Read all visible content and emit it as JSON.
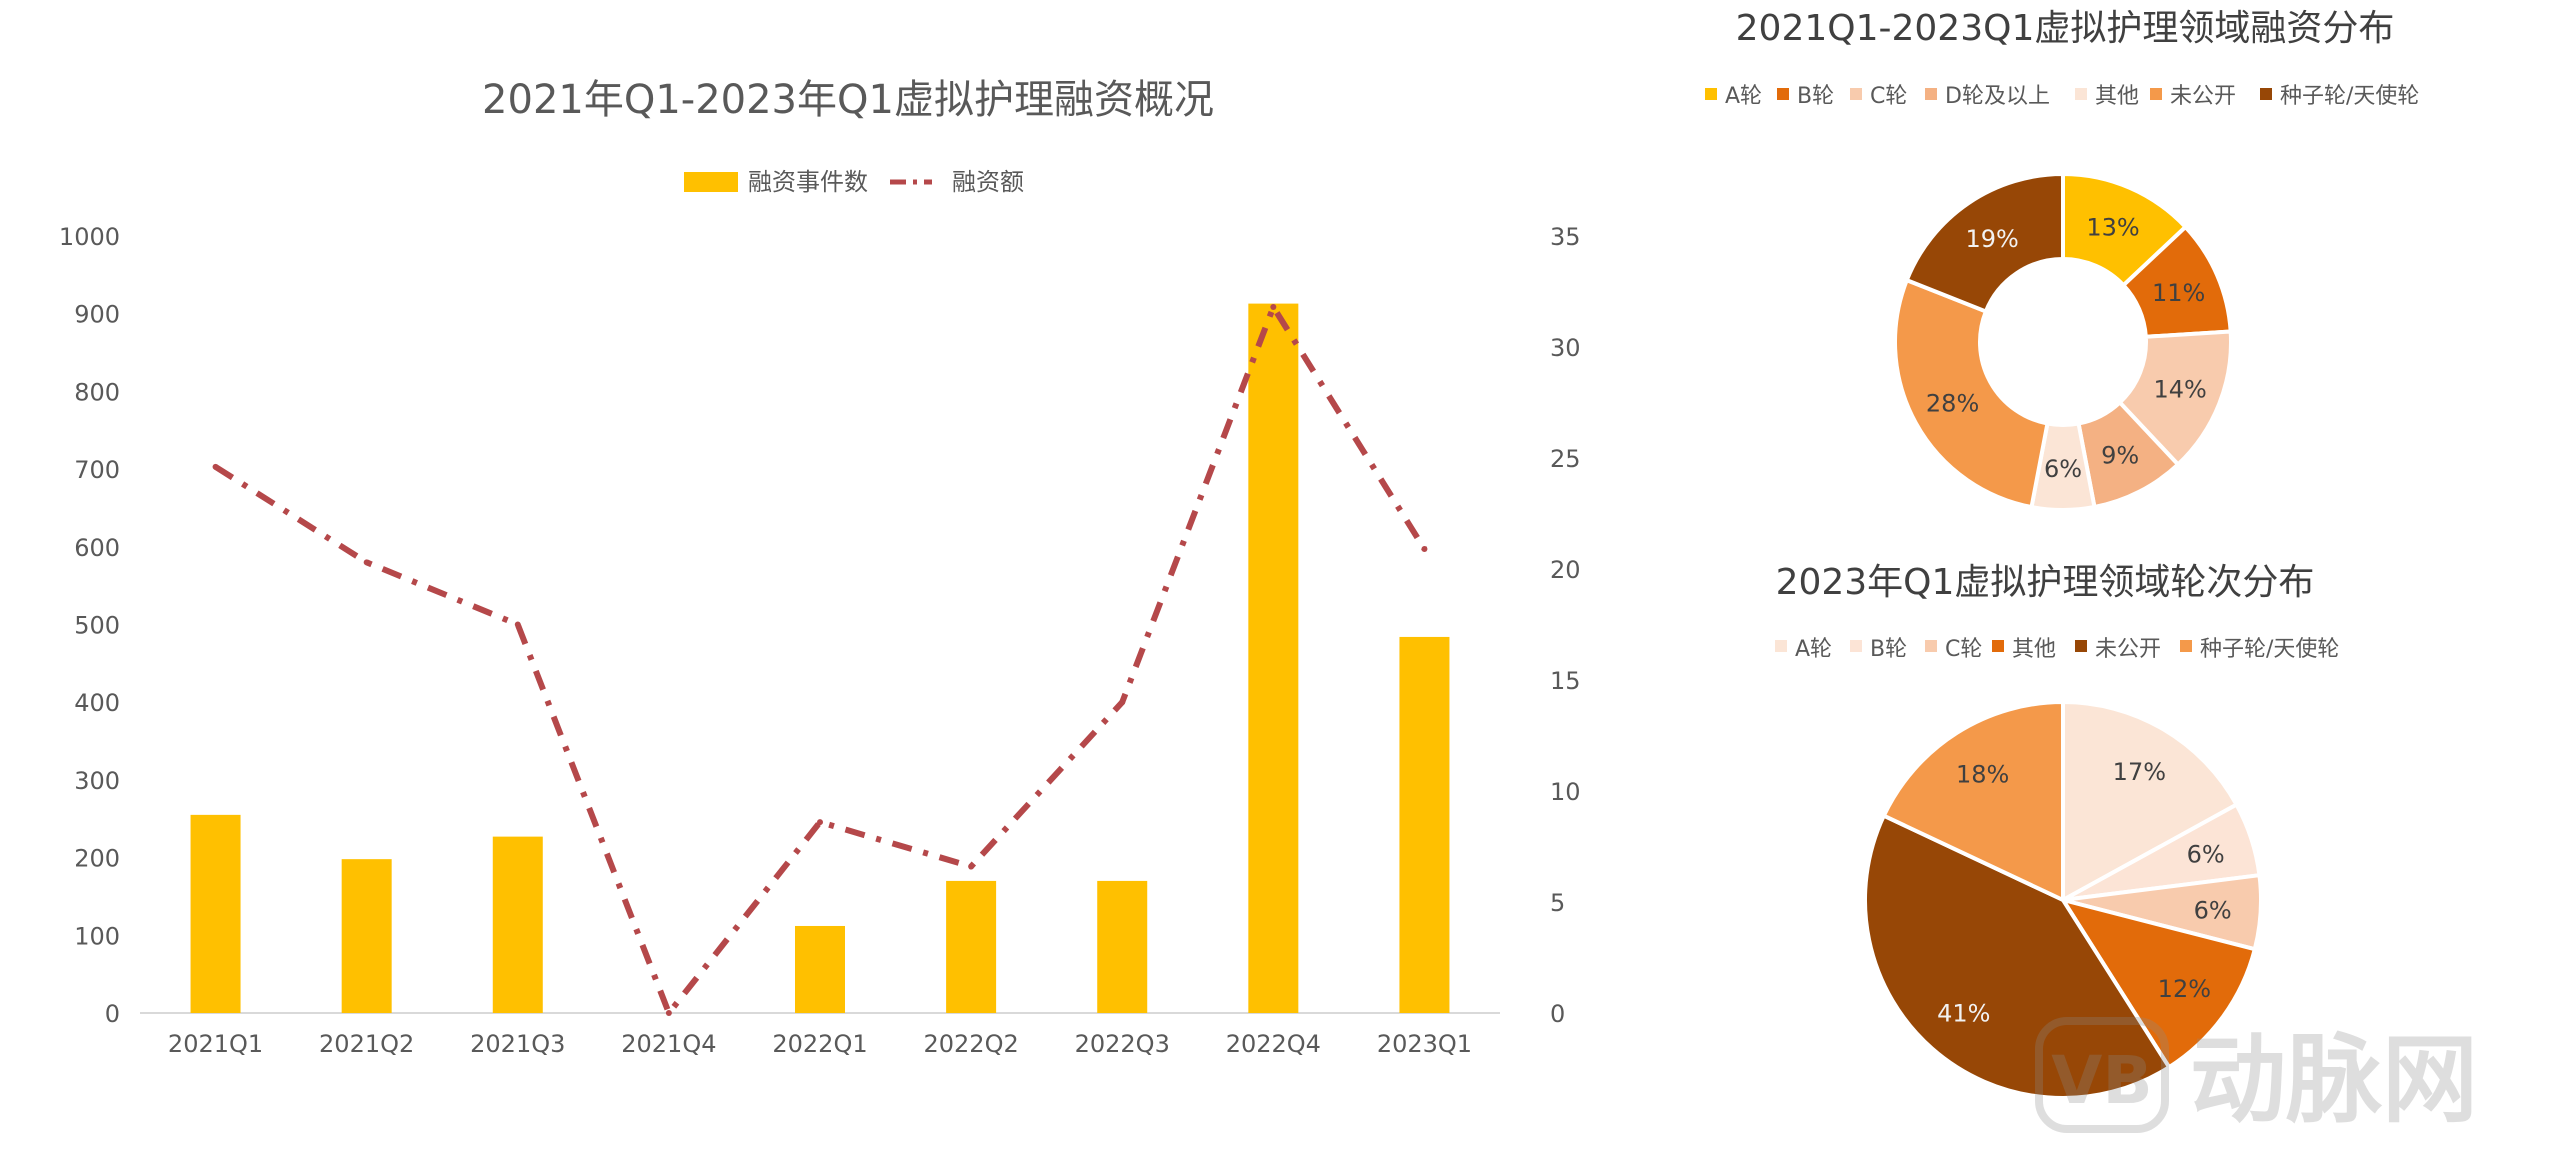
{
  "chart_data": [
    {
      "type": "bar+line",
      "title": "2021年Q1-2023年Q1虚拟护理融资概况",
      "categories": [
        "2021Q1",
        "2021Q2",
        "2021Q3",
        "2021Q4",
        "2022Q1",
        "2022Q2",
        "2022Q3",
        "2022Q4",
        "2023Q1"
      ],
      "series": [
        {
          "name": "融资事件数",
          "type": "bar",
          "axis": "left",
          "color": "#FFC000",
          "values": [
            255,
            198,
            227,
            0,
            112,
            170,
            170,
            913,
            484
          ]
        },
        {
          "name": "融资额",
          "type": "line",
          "style": "dash-dot",
          "axis": "right",
          "color": "#B5484A",
          "values": [
            24.6,
            20.3,
            17.5,
            0,
            8.6,
            6.6,
            14.0,
            31.8,
            20.9
          ]
        }
      ],
      "left_axis": {
        "ylim": [
          0,
          1000
        ],
        "ticks": [
          0,
          100,
          200,
          300,
          400,
          500,
          600,
          700,
          800,
          900,
          1000
        ]
      },
      "right_axis": {
        "ylim": [
          0,
          35
        ],
        "ticks": [
          0,
          5,
          10,
          15,
          20,
          25,
          30,
          35
        ]
      },
      "legend_position": "top-center",
      "grid": false
    },
    {
      "type": "donut",
      "title": "2021Q1-2023Q1虚拟护理领域融资分布",
      "legend": [
        "A轮",
        "B轮",
        "C轮",
        "D轮及以上",
        "其他",
        "未公开",
        "种子轮/天使轮"
      ],
      "slices": [
        {
          "label": "A轮",
          "value": 13,
          "text": "13%",
          "color": "#FFC000"
        },
        {
          "label": "B轮",
          "value": 11,
          "text": "11%",
          "color": "#E26B0A"
        },
        {
          "label": "C轮",
          "value": 14,
          "text": "14%",
          "color": "#F8CBAD"
        },
        {
          "label": "D轮及以上",
          "value": 9,
          "text": "9%",
          "color": "#F4B183"
        },
        {
          "label": "其他",
          "value": 6,
          "text": "6%",
          "color": "#FBE5D6"
        },
        {
          "label": "未公开",
          "value": 28,
          "text": "28%",
          "color": "#F4994A"
        },
        {
          "label": "种子轮/天使轮",
          "value": 19,
          "text": "19%",
          "color": "#974706"
        }
      ]
    },
    {
      "type": "pie",
      "title": "2023年Q1虚拟护理领域轮次分布",
      "legend": [
        {
          "label": "A轮",
          "color": "#FBE5D6"
        },
        {
          "label": "B轮",
          "color": "#FCE4D6"
        },
        {
          "label": "C轮",
          "color": "#F8CBAD"
        },
        {
          "label": "其他",
          "color": "#E26B0A"
        },
        {
          "label": "未公开",
          "color": "#974706"
        },
        {
          "label": "种子轮/天使轮",
          "color": "#F4994A"
        }
      ],
      "slices": [
        {
          "label": "A轮",
          "value": 17,
          "text": "17%",
          "color": "#FBE5D6"
        },
        {
          "label": "B轮",
          "value": 6,
          "text": "6%",
          "color": "#FCE4D6"
        },
        {
          "label": "C轮",
          "value": 6,
          "text": "6%",
          "color": "#F8CBAD"
        },
        {
          "label": "其他",
          "value": 12,
          "text": "12%",
          "color": "#E26B0A"
        },
        {
          "label": "未公开",
          "value": 41,
          "text": "41%",
          "color": "#974706"
        },
        {
          "label": "种子轮/天使轮",
          "value": 18,
          "text": "18%",
          "color": "#F4994A"
        }
      ]
    }
  ],
  "watermark": {
    "text": "动脉网",
    "logo_text": "VB"
  }
}
